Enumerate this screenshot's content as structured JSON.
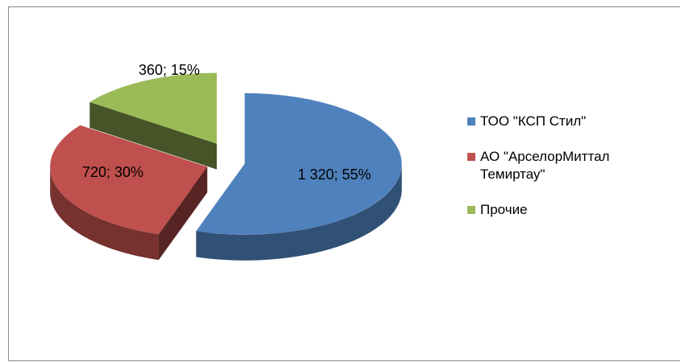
{
  "chart_data": {
    "type": "pie",
    "three_d": true,
    "exploded": true,
    "categories": [
      "ТОО \"КСП Стил\"",
      "АО \"АрселорМиттал Темиртау\"",
      "Прочие"
    ],
    "values": [
      1320,
      720,
      360
    ],
    "value_labels": [
      "1 320; 55%",
      "720; 30%",
      "360; 15%"
    ],
    "colors": [
      "#4f81bd",
      "#c0504d",
      "#9bbb59"
    ],
    "legend": "right"
  }
}
